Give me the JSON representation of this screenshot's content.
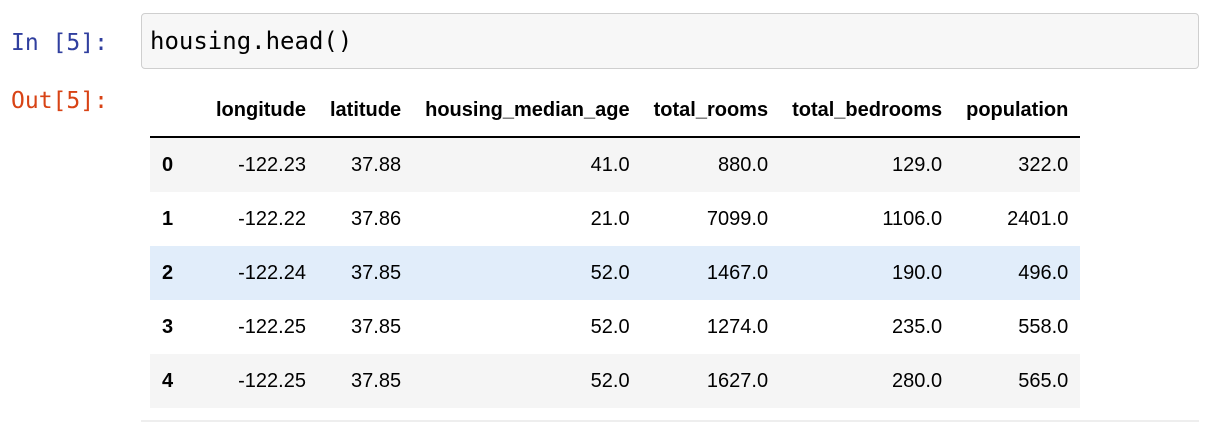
{
  "cell": {
    "in_prompt": "In [5]:",
    "out_prompt": "Out[5]:",
    "code": "housing.head()"
  },
  "table": {
    "columns": [
      "",
      "longitude",
      "latitude",
      "housing_median_age",
      "total_rooms",
      "total_bedrooms",
      "population"
    ],
    "rows": [
      {
        "index": "0",
        "longitude": "-122.23",
        "latitude": "37.88",
        "housing_median_age": "41.0",
        "total_rooms": "880.0",
        "total_bedrooms": "129.0",
        "population": "322.0"
      },
      {
        "index": "1",
        "longitude": "-122.22",
        "latitude": "37.86",
        "housing_median_age": "21.0",
        "total_rooms": "7099.0",
        "total_bedrooms": "1106.0",
        "population": "2401.0"
      },
      {
        "index": "2",
        "longitude": "-122.24",
        "latitude": "37.85",
        "housing_median_age": "52.0",
        "total_rooms": "1467.0",
        "total_bedrooms": "190.0",
        "population": "496.0"
      },
      {
        "index": "3",
        "longitude": "-122.25",
        "latitude": "37.85",
        "housing_median_age": "52.0",
        "total_rooms": "1274.0",
        "total_bedrooms": "235.0",
        "population": "558.0"
      },
      {
        "index": "4",
        "longitude": "-122.25",
        "latitude": "37.85",
        "housing_median_age": "52.0",
        "total_rooms": "1627.0",
        "total_bedrooms": "280.0",
        "population": "565.0"
      }
    ],
    "hovered_row_index": 2,
    "colors": {
      "row_striped": "#f5f5f5",
      "row_hover": "#e1edfa",
      "in_prompt": "#303f9f",
      "out_prompt": "#d84315"
    }
  }
}
